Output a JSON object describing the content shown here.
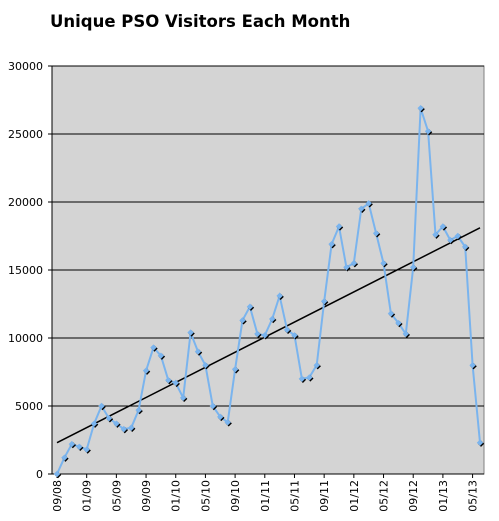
{
  "chart_data": {
    "type": "line",
    "title": "Unique PSO Visitors Each Month",
    "xlabel": "",
    "ylabel": "",
    "ylim": [
      0,
      30000
    ],
    "y_ticks": [
      0,
      5000,
      10000,
      15000,
      20000,
      25000,
      30000
    ],
    "y_tick_labels": [
      "0",
      "5000",
      "10000",
      "15000",
      "20000",
      "25000",
      "30000"
    ],
    "x_tick_labels": [
      "09/08",
      "01/09",
      "05/09",
      "09/09",
      "01/10",
      "05/10",
      "09/10",
      "01/11",
      "05/11",
      "09/11",
      "01/12",
      "05/12",
      "09/12",
      "01/13",
      "05/13"
    ],
    "grid": true,
    "legend": "none",
    "colors": {
      "plot_bg": "#d4d4d4",
      "line": "#7ab4ee",
      "trend": "#000000",
      "marker": "#000000",
      "grid": "#000000"
    },
    "series": [
      {
        "values": [
          0,
          1200,
          2200,
          2000,
          1800,
          3700,
          5000,
          4100,
          3700,
          3300,
          3400,
          4700,
          7600,
          9300,
          8700,
          6900,
          6700,
          5600,
          10400,
          9000,
          8000,
          5000,
          4200,
          3800,
          7700,
          11300,
          12300,
          10300,
          10200,
          11400,
          13100,
          10600,
          10200,
          7000,
          7100,
          8000,
          12700,
          16900,
          18200,
          15200,
          15500,
          19500,
          19900,
          17700,
          15500,
          11800,
          11100,
          10300,
          15200,
          26900,
          25200,
          17600,
          18200,
          17200,
          17500,
          16700,
          8000,
          2300
        ]
      },
      {
        "values": [
          2300,
          18100
        ]
      }
    ]
  }
}
